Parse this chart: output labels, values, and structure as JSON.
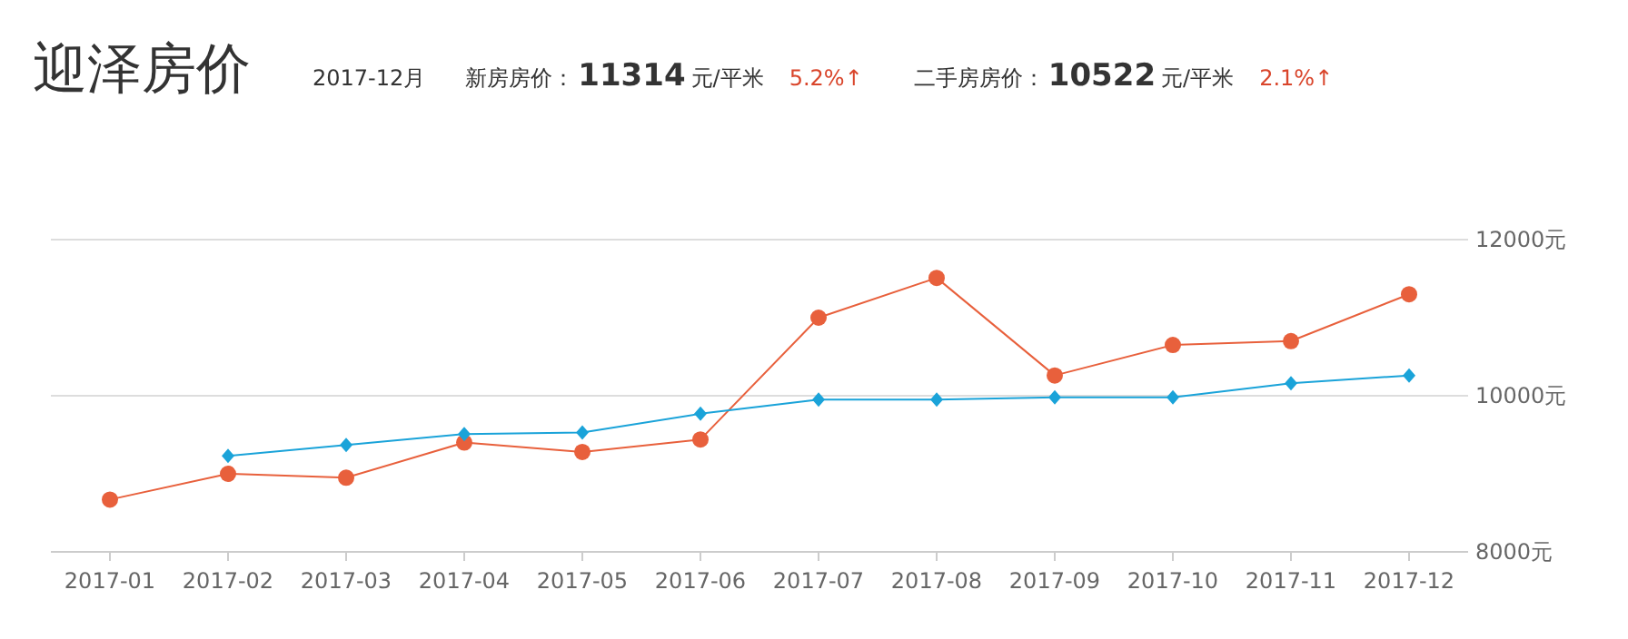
{
  "chart_data": {
    "type": "line",
    "title": "迎泽房价",
    "annotations": [
      "2017-12月",
      "新房房价：",
      "11314",
      "元/平米",
      "5.2%↑",
      "二手房房价：",
      "10522",
      "元/平米",
      "2.1%↑"
    ],
    "categories": [
      "2017-01",
      "2017-02",
      "2017-03",
      "2017-04",
      "2017-05",
      "2017-06",
      "2017-07",
      "2017-08",
      "2017-09",
      "2017-10",
      "2017-11",
      "2017-12"
    ],
    "series": [
      {
        "color": "#e8603c",
        "marker": "circle",
        "values": [
          8670,
          9000,
          8950,
          9400,
          9280,
          9440,
          11000,
          11510,
          10260,
          10650,
          10700,
          11300
        ]
      },
      {
        "color": "#1aa3d9",
        "marker": "diamond",
        "values": [
          null,
          9230,
          9370,
          9510,
          9530,
          9770,
          9950,
          9950,
          9980,
          9980,
          10160,
          10260
        ]
      }
    ],
    "ylim": [
      8000,
      12000
    ],
    "yticks": [
      {
        "value": 8000,
        "label": "8000元"
      },
      {
        "value": 10000,
        "label": "10000元"
      },
      {
        "value": 12000,
        "label": "12000元"
      }
    ],
    "grid": "y"
  }
}
